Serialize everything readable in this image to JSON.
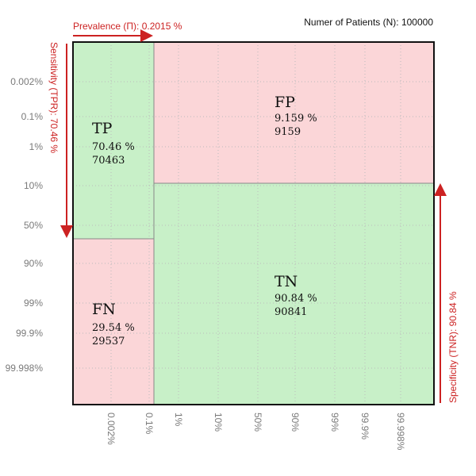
{
  "header": {
    "prevalence_label": "Prevalence (Π): 0.2015 %",
    "patients_label": "Numer of Patients (N): 100000"
  },
  "side_labels": {
    "sensitivity": "Sensitivity (TPR): 70.46 %",
    "specificity": "Specificity (TNR): 90.84 %"
  },
  "cells": {
    "tp": {
      "name": "TP",
      "percent": "70.46 %",
      "count": "70463"
    },
    "fp": {
      "name": "FP",
      "percent": "9.159 %",
      "count": "9159"
    },
    "fn": {
      "name": "FN",
      "percent": "29.54 %",
      "count": "29537"
    },
    "tn": {
      "name": "TN",
      "percent": "90.84 %",
      "count": "90841"
    }
  },
  "axes": {
    "y_ticks": [
      "0.002%",
      "0.1%",
      "1%",
      "10%",
      "50%",
      "90%",
      "99%",
      "99.9%",
      "99.998%"
    ],
    "x_ticks": [
      "0.002%",
      "0.1%",
      "1%",
      "10%",
      "50%",
      "90%",
      "99%",
      "99.9%",
      "99.998%"
    ]
  },
  "colors": {
    "red_accent": "#cc2222",
    "positive_fill": "#c8f0c8",
    "negative_fill": "#fbd6d8",
    "grid": "#bbbbbb",
    "tick_text": "#7a7a7a"
  }
}
